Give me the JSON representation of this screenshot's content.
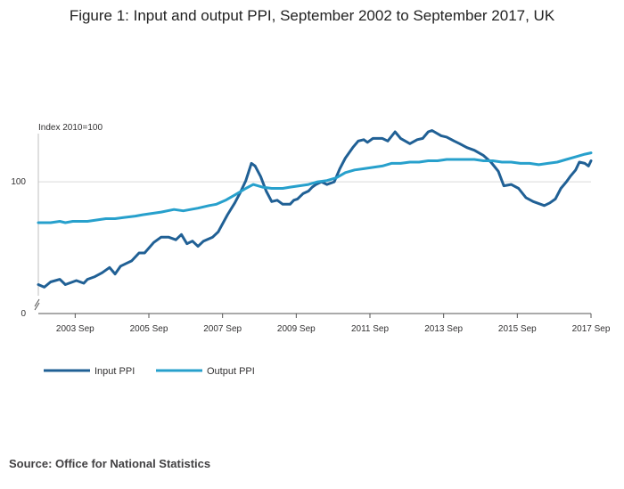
{
  "chart_data": {
    "type": "line",
    "title": "Figure 1: Input and output PPI, September 2002 to September 2017, UK",
    "ylabel": "Index 2010=100",
    "xlabel": "",
    "ylim": [
      0,
      140
    ],
    "axis_break": true,
    "y_ticks": [
      0,
      100
    ],
    "y_tick_labels": [
      "0",
      "100"
    ],
    "x_ticks": [
      2003.667,
      2005.667,
      2007.667,
      2009.667,
      2011.667,
      2013.667,
      2015.667,
      2017.667
    ],
    "x_tick_labels": [
      "2003 Sep",
      "2005 Sep",
      "2007 Sep",
      "2009 Sep",
      "2011 Sep",
      "2013 Sep",
      "2015 Sep",
      "2017 Sep"
    ],
    "xlim": [
      2002.667,
      2017.667
    ],
    "legend_position": "bottom-left",
    "series": [
      {
        "name": "Input PPI",
        "color": "#206095",
        "points": [
          [
            2002.667,
            22
          ],
          [
            2002.83,
            20
          ],
          [
            2003.0,
            24
          ],
          [
            2003.25,
            26
          ],
          [
            2003.4,
            22
          ],
          [
            2003.7,
            25
          ],
          [
            2003.9,
            23
          ],
          [
            2004.0,
            26
          ],
          [
            2004.2,
            28
          ],
          [
            2004.4,
            31
          ],
          [
            2004.6,
            35
          ],
          [
            2004.75,
            30
          ],
          [
            2004.9,
            36
          ],
          [
            2005.05,
            38
          ],
          [
            2005.2,
            40
          ],
          [
            2005.4,
            46
          ],
          [
            2005.55,
            46
          ],
          [
            2005.8,
            54
          ],
          [
            2006.0,
            58
          ],
          [
            2006.2,
            58
          ],
          [
            2006.4,
            56
          ],
          [
            2006.55,
            60
          ],
          [
            2006.7,
            53
          ],
          [
            2006.85,
            55
          ],
          [
            2007.0,
            51
          ],
          [
            2007.15,
            55
          ],
          [
            2007.4,
            58
          ],
          [
            2007.55,
            62
          ],
          [
            2007.8,
            75
          ],
          [
            2008.0,
            84
          ],
          [
            2008.15,
            92
          ],
          [
            2008.3,
            101
          ],
          [
            2008.45,
            114
          ],
          [
            2008.55,
            112
          ],
          [
            2008.7,
            104
          ],
          [
            2008.85,
            93
          ],
          [
            2009.0,
            85
          ],
          [
            2009.15,
            86
          ],
          [
            2009.3,
            83
          ],
          [
            2009.5,
            83
          ],
          [
            2009.6,
            86
          ],
          [
            2009.7,
            87
          ],
          [
            2009.85,
            91
          ],
          [
            2010.0,
            93
          ],
          [
            2010.1,
            96
          ],
          [
            2010.2,
            98
          ],
          [
            2010.35,
            100
          ],
          [
            2010.5,
            98
          ],
          [
            2010.6,
            99
          ],
          [
            2010.7,
            100
          ],
          [
            2010.85,
            110
          ],
          [
            2011.0,
            118
          ],
          [
            2011.2,
            126
          ],
          [
            2011.35,
            131
          ],
          [
            2011.5,
            132
          ],
          [
            2011.6,
            130
          ],
          [
            2011.75,
            133
          ],
          [
            2012.0,
            133
          ],
          [
            2012.15,
            131
          ],
          [
            2012.35,
            138
          ],
          [
            2012.5,
            133
          ],
          [
            2012.75,
            129
          ],
          [
            2012.95,
            132
          ],
          [
            2013.1,
            133
          ],
          [
            2013.25,
            138
          ],
          [
            2013.35,
            139
          ],
          [
            2013.6,
            135
          ],
          [
            2013.75,
            134
          ],
          [
            2013.95,
            131
          ],
          [
            2014.1,
            129
          ],
          [
            2014.3,
            126
          ],
          [
            2014.5,
            124
          ],
          [
            2014.75,
            120
          ],
          [
            2014.95,
            115
          ],
          [
            2015.15,
            108
          ],
          [
            2015.3,
            97
          ],
          [
            2015.5,
            98
          ],
          [
            2015.7,
            95
          ],
          [
            2015.9,
            88
          ],
          [
            2016.1,
            85
          ],
          [
            2016.3,
            83
          ],
          [
            2016.4,
            82
          ],
          [
            2016.55,
            84
          ],
          [
            2016.7,
            87
          ],
          [
            2016.85,
            95
          ],
          [
            2017.0,
            100
          ],
          [
            2017.1,
            104
          ],
          [
            2017.25,
            109
          ],
          [
            2017.35,
            115
          ],
          [
            2017.5,
            114
          ],
          [
            2017.6,
            112
          ],
          [
            2017.667,
            116
          ]
        ]
      },
      {
        "name": "Output PPI",
        "color": "#27a0cc",
        "points": [
          [
            2002.667,
            69
          ],
          [
            2003.0,
            69
          ],
          [
            2003.25,
            70
          ],
          [
            2003.4,
            69
          ],
          [
            2003.6,
            70
          ],
          [
            2004.0,
            70
          ],
          [
            2004.25,
            71
          ],
          [
            2004.5,
            72
          ],
          [
            2004.75,
            72
          ],
          [
            2005.0,
            73
          ],
          [
            2005.3,
            74
          ],
          [
            2005.5,
            75
          ],
          [
            2005.75,
            76
          ],
          [
            2006.0,
            77
          ],
          [
            2006.35,
            79
          ],
          [
            2006.6,
            78
          ],
          [
            2006.8,
            79
          ],
          [
            2007.0,
            80
          ],
          [
            2007.3,
            82
          ],
          [
            2007.5,
            83
          ],
          [
            2007.75,
            86
          ],
          [
            2008.0,
            90
          ],
          [
            2008.3,
            95
          ],
          [
            2008.5,
            98
          ],
          [
            2008.75,
            96
          ],
          [
            2009.0,
            95
          ],
          [
            2009.3,
            95
          ],
          [
            2009.5,
            96
          ],
          [
            2009.75,
            97
          ],
          [
            2010.0,
            98
          ],
          [
            2010.25,
            100
          ],
          [
            2010.5,
            101
          ],
          [
            2010.75,
            103
          ],
          [
            2011.0,
            107
          ],
          [
            2011.25,
            109
          ],
          [
            2011.5,
            110
          ],
          [
            2011.75,
            111
          ],
          [
            2012.0,
            112
          ],
          [
            2012.25,
            114
          ],
          [
            2012.5,
            114
          ],
          [
            2012.75,
            115
          ],
          [
            2013.0,
            115
          ],
          [
            2013.25,
            116
          ],
          [
            2013.5,
            116
          ],
          [
            2013.75,
            117
          ],
          [
            2014.0,
            117
          ],
          [
            2014.25,
            117
          ],
          [
            2014.5,
            117
          ],
          [
            2014.75,
            116
          ],
          [
            2015.0,
            116
          ],
          [
            2015.25,
            115
          ],
          [
            2015.5,
            115
          ],
          [
            2015.75,
            114
          ],
          [
            2016.0,
            114
          ],
          [
            2016.25,
            113
          ],
          [
            2016.5,
            114
          ],
          [
            2016.75,
            115
          ],
          [
            2017.0,
            117
          ],
          [
            2017.25,
            119
          ],
          [
            2017.5,
            121
          ],
          [
            2017.667,
            122
          ]
        ]
      }
    ]
  },
  "source": "Source: Office for National Statistics"
}
